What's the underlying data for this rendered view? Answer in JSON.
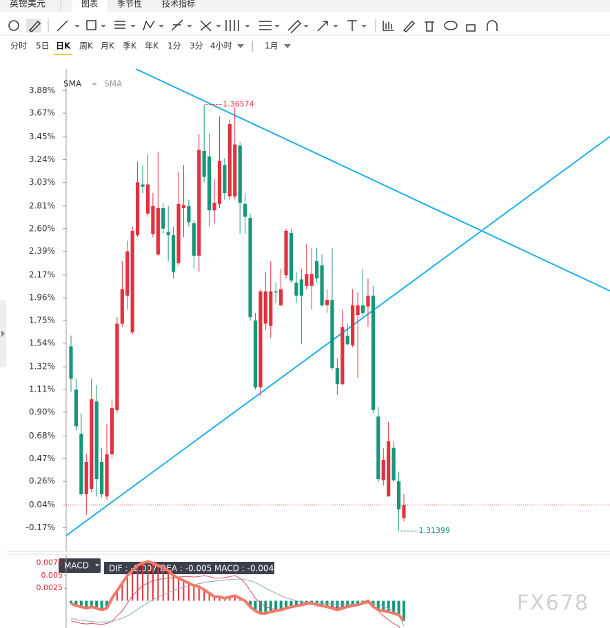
{
  "header": {
    "symbol": "英镑美元",
    "tabs": [
      "图表",
      "季节性",
      "技术指标"
    ]
  },
  "periods": {
    "items": [
      "分时",
      "5日",
      "日K",
      "周K",
      "月K",
      "季K",
      "年K",
      "1分",
      "3分",
      "4小时"
    ],
    "active_index": 2,
    "month": "1月"
  },
  "watermark": "FX678",
  "chart_data": [
    {
      "type": "candlestick",
      "indicators": [
        "SMA",
        "SMA"
      ],
      "high_label": "1.36574",
      "low_label": "1.31399",
      "ylim": [
        -0.39,
        4.08
      ],
      "yticks": [
        {
          "value": 3.88,
          "label": "3.88%"
        },
        {
          "value": 3.67,
          "label": "3.67%"
        },
        {
          "value": 3.45,
          "label": "3.45%"
        },
        {
          "value": 3.24,
          "label": "3.24%"
        },
        {
          "value": 3.03,
          "label": "3.03%"
        },
        {
          "value": 2.81,
          "label": "2.81%"
        },
        {
          "value": 2.6,
          "label": "2.60%"
        },
        {
          "value": 2.39,
          "label": "2.39%"
        },
        {
          "value": 2.17,
          "label": "2.17%"
        },
        {
          "value": 1.96,
          "label": "1.96%"
        },
        {
          "value": 1.75,
          "label": "1.75%"
        },
        {
          "value": 1.54,
          "label": "1.54%"
        },
        {
          "value": 1.32,
          "label": "1.32%"
        },
        {
          "value": 1.11,
          "label": "1.11%"
        },
        {
          "value": 0.9,
          "label": "0.90%"
        },
        {
          "value": 0.68,
          "label": "0.68%"
        },
        {
          "value": 0.47,
          "label": "0.47%"
        },
        {
          "value": 0.26,
          "label": "0.26%"
        },
        {
          "value": 0.04,
          "label": "0.04%"
        },
        {
          "value": -0.17,
          "label": "-0.17%"
        }
      ],
      "up_color": "#e2323f",
      "down_color": "#17977a",
      "open": [
        1.51,
        1.11,
        0.7,
        0.14,
        0.19,
        1.0,
        0.44,
        0.12,
        0.51,
        0.92,
        1.72,
        1.98,
        1.64,
        2.54,
        3.01,
        2.74,
        2.55,
        2.36,
        2.79,
        2.57,
        2.54,
        2.28,
        2.79,
        2.81,
        2.65,
        2.35,
        3.32,
        3.27,
        2.77,
        2.83,
        3.19,
        2.9,
        2.9,
        3.37,
        2.83,
        2.7,
        1.75,
        1.13,
        1.72,
        1.7,
        2.02,
        1.89,
        2.17,
        2.56,
        2.1,
        2.13,
        2.07,
        2.07,
        2.3,
        2.26,
        1.89,
        1.94,
        1.31,
        1.16,
        1.61,
        1.52,
        1.8,
        1.89,
        1.88,
        1.98,
        0.86,
        0.27,
        0.12,
        0.57,
        0.26,
        -0.08
      ],
      "high": [
        1.61,
        1.21,
        0.89,
        0.51,
        1.21,
        1.15,
        0.57,
        0.79,
        1.02,
        1.78,
        2.3,
        2.49,
        2.62,
        3.22,
        3.19,
        3.29,
        2.93,
        3.31,
        2.84,
        2.81,
        2.62,
        3.13,
        3.19,
        2.87,
        2.68,
        3.48,
        3.75,
        3.48,
        3.06,
        3.64,
        3.25,
        3.61,
        3.73,
        3.4,
        2.93,
        2.74,
        1.82,
        2.04,
        2.2,
        2.3,
        2.1,
        2.23,
        2.6,
        2.6,
        2.2,
        2.23,
        2.46,
        2.42,
        2.42,
        2.36,
        2.04,
        2.42,
        1.4,
        1.85,
        1.72,
        2.04,
        2.01,
        2.23,
        2.14,
        2.07,
        0.95,
        0.57,
        0.81,
        0.63,
        0.35,
        0.14
      ],
      "low": [
        1.09,
        0.73,
        0.12,
        -0.05,
        0.16,
        0.12,
        0.11,
        0.09,
        0.47,
        0.89,
        1.69,
        1.85,
        1.62,
        2.52,
        2.93,
        2.71,
        2.52,
        2.35,
        2.55,
        2.3,
        2.14,
        2.26,
        2.52,
        2.62,
        2.23,
        2.2,
        3.03,
        2.62,
        2.65,
        2.79,
        2.87,
        2.87,
        2.87,
        2.55,
        2.55,
        1.75,
        1.11,
        1.05,
        1.66,
        1.59,
        1.91,
        1.88,
        2.14,
        2.1,
        1.91,
        1.53,
        2.04,
        1.85,
        2.1,
        1.88,
        1.82,
        1.29,
        1.06,
        1.15,
        1.52,
        1.5,
        1.22,
        1.79,
        1.69,
        0.89,
        0.25,
        0.22,
        0.12,
        0.25,
        -0.2,
        -0.11
      ],
      "close": [
        1.21,
        0.77,
        0.14,
        0.44,
        1.02,
        0.28,
        0.14,
        0.51,
        0.94,
        1.72,
        2.04,
        2.39,
        2.58,
        3.03,
        2.99,
        3.01,
        2.81,
        2.79,
        2.6,
        2.54,
        2.2,
        2.83,
        2.82,
        2.66,
        2.35,
        3.33,
        3.08,
        2.77,
        2.84,
        3.23,
        2.93,
        3.57,
        3.38,
        2.84,
        2.71,
        1.78,
        1.13,
        2.02,
        2.02,
        2.02,
        2.01,
        2.04,
        2.58,
        2.12,
        1.98,
        1.98,
        2.18,
        2.18,
        2.14,
        1.89,
        1.94,
        1.31,
        1.16,
        1.69,
        1.53,
        1.89,
        1.89,
        1.82,
        1.98,
        0.92,
        0.28,
        0.46,
        0.63,
        0.27,
        0.0,
        0.04
      ]
    },
    {
      "type": "macd",
      "title": "MACD",
      "readouts": [
        "DIF : -0.007",
        "DEA : -0.005",
        "MACD : -0.004"
      ],
      "ylim": [
        -0.0054,
        0.0091
      ],
      "yticks": [
        0.0075,
        0.005,
        0.0025
      ],
      "tick_color": "#e0202a",
      "histogram": {
        "up_color": "#e2323f",
        "down_color": "#17977a",
        "line_color": "#f47a68",
        "values": [
          -0.0005,
          -0.001,
          -0.0012,
          -0.0015,
          -0.0012,
          -0.0015,
          -0.0018,
          -0.0015,
          0.0005,
          0.002,
          0.0035,
          0.005,
          0.006,
          0.007,
          0.0075,
          0.0078,
          0.0075,
          0.007,
          0.0065,
          0.006,
          0.005,
          0.0045,
          0.004,
          0.0035,
          0.003,
          0.0028,
          0.0022,
          0.0015,
          0.0008,
          0.0008,
          0.0005,
          0.0008,
          0.001,
          0.0005,
          0,
          -0.0012,
          -0.002,
          -0.0025,
          -0.0025,
          -0.0022,
          -0.002,
          -0.0018,
          -0.0015,
          -0.0012,
          -0.001,
          -0.0008,
          -0.0005,
          -0.0005,
          -0.0008,
          -0.001,
          -0.0012,
          -0.0015,
          -0.0018,
          -0.0015,
          -0.0012,
          -0.001,
          -0.0008,
          -0.0005,
          0,
          -0.0012,
          -0.0018,
          -0.002,
          -0.0022,
          -0.0025,
          -0.0028,
          -0.004
        ]
      },
      "series": [
        {
          "color": "#e04a55",
          "values": [
            -0.004,
            -0.0042,
            -0.0045,
            -0.0046,
            -0.0045,
            -0.0046,
            -0.0047,
            -0.0045,
            -0.004,
            -0.003,
            -0.002,
            -0.0005,
            0.001,
            0.002,
            0.003,
            0.0035,
            0.004,
            0.0042,
            0.0044,
            0.0045,
            0.0046,
            0.0047,
            0.0048,
            0.0048,
            0.0047,
            0.0048,
            0.005,
            0.0048,
            0.0045,
            0.0045,
            0.0046,
            0.0048,
            0.005,
            0.0045,
            0.0035,
            0.002,
            0.0005,
            -0.0005,
            -0.0012,
            -0.0015,
            -0.0017,
            -0.0018,
            -0.0016,
            -0.0014,
            -0.0012,
            -0.001,
            -0.0008,
            -0.0006,
            -0.0006,
            -0.0008,
            -0.001,
            -0.0012,
            -0.0014,
            -0.0012,
            -0.001,
            -0.0008,
            -0.0006,
            -0.0004,
            -0.0003,
            -0.001,
            -0.002,
            -0.003,
            -0.0038,
            -0.0045,
            -0.005,
            -0.007
          ]
        },
        {
          "color": "#8fa6bd",
          "values": [
            -0.0035,
            -0.0037,
            -0.0039,
            -0.004,
            -0.0041,
            -0.0042,
            -0.0042,
            -0.0042,
            -0.0041,
            -0.0038,
            -0.0035,
            -0.003,
            -0.0024,
            -0.0017,
            -0.001,
            -0.0004,
            0.0002,
            0.0007,
            0.0012,
            0.0016,
            0.002,
            0.0024,
            0.0027,
            0.003,
            0.0032,
            0.0034,
            0.0036,
            0.0038,
            0.0039,
            0.004,
            0.0041,
            0.0042,
            0.0043,
            0.0043,
            0.0042,
            0.004,
            0.0036,
            0.0031,
            0.0025,
            0.002,
            0.0015,
            0.001,
            0.0006,
            0.0003,
            0,
            -0.0002,
            -0.0003,
            -0.0004,
            -0.0005,
            -0.0005,
            -0.0006,
            -0.0006,
            -0.0007,
            -0.0007,
            -0.0007,
            -0.0007,
            -0.0006,
            -0.0006,
            -0.0005,
            -0.0006,
            -0.0008,
            -0.0011,
            -0.0015,
            -0.002,
            -0.0027,
            -0.005
          ]
        }
      ]
    }
  ]
}
